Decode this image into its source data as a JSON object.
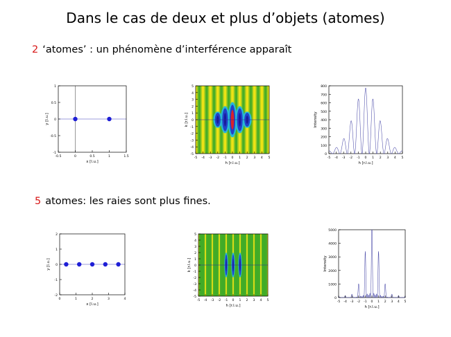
{
  "slide": {
    "title": "Dans le cas de deux et plus d’objets (atomes)",
    "row1_number": "2",
    "row1_text": "‘atomes’ : un phénomène d’interférence apparaît",
    "row2_number": "5",
    "row2_text": "atomes: les raies sont plus fines."
  },
  "colors": {
    "number": "#d81818",
    "atom": "#1f1fd6",
    "curve": "#4a4aa8",
    "map_base": "#f2e62a"
  },
  "chart_data": [
    {
      "type": "scatter",
      "panel": "positions-2",
      "x": [
        0,
        1
      ],
      "y": [
        0,
        0
      ],
      "xlabel": "x [l.u.]",
      "ylabel": "y [l.u.]",
      "xlim": [
        -0.5,
        1.5
      ],
      "ylim": [
        -1,
        1
      ],
      "xticks": [
        "-0.5",
        "0",
        "0.5",
        "1",
        "1.5"
      ],
      "yticks": [
        "1",
        "0.5",
        "0",
        "-0.5",
        "-1"
      ]
    },
    {
      "type": "heatmap",
      "panel": "map-2",
      "n_atoms": 2,
      "xlabel": "h [r.l.u.]",
      "ylabel": "k [r.l.u.]",
      "xlim": [
        -5,
        5
      ],
      "ylim": [
        -5,
        5
      ],
      "xticks": [
        "-5",
        "-4",
        "-3",
        "-2",
        "-1",
        "0",
        "1",
        "2",
        "3",
        "4",
        "5"
      ],
      "yticks": [
        "5",
        "4",
        "3",
        "2",
        "1",
        "0",
        "-1",
        "-2",
        "-3",
        "-4",
        "-5"
      ]
    },
    {
      "type": "line",
      "panel": "profile-2",
      "n_atoms": 2,
      "xlabel": "h [r.l.u.]",
      "ylabel": "Intensity",
      "xlim": [
        -5,
        5
      ],
      "ylim": [
        0,
        800
      ],
      "xticks": [
        "-5",
        "-4",
        "-3",
        "-2",
        "-1",
        "0",
        "1",
        "2",
        "3",
        "4",
        "5"
      ],
      "yticks": [
        "800",
        "700",
        "600",
        "500",
        "400",
        "300",
        "200",
        "100",
        "0"
      ]
    },
    {
      "type": "scatter",
      "panel": "positions-5",
      "x": [
        0,
        1,
        2,
        3,
        4
      ],
      "y": [
        0,
        0,
        0,
        0,
        0
      ],
      "xlabel": "x [l.u.]",
      "ylabel": "y [l.u.]",
      "xlim": [
        -0.5,
        4.5
      ],
      "ylim": [
        -2.5,
        2.5
      ],
      "xticks": [
        "0",
        "1",
        "2",
        "3",
        "4"
      ],
      "yticks": [
        "2",
        "1",
        "0",
        "-1",
        "-2"
      ]
    },
    {
      "type": "heatmap",
      "panel": "map-5",
      "n_atoms": 5,
      "xlabel": "h [r.l.u.]",
      "ylabel": "k [r.l.u.]",
      "xlim": [
        -5,
        5
      ],
      "ylim": [
        -5,
        5
      ],
      "xticks": [
        "-5",
        "-4",
        "-3",
        "-2",
        "-1",
        "0",
        "1",
        "2",
        "3",
        "4",
        "5"
      ],
      "yticks": [
        "5",
        "4",
        "3",
        "2",
        "1",
        "0",
        "-1",
        "-2",
        "-3",
        "-4",
        "-5"
      ]
    },
    {
      "type": "line",
      "panel": "profile-5",
      "n_atoms": 5,
      "xlabel": "h [r.l.u.]",
      "ylabel": "Intensity",
      "xlim": [
        -5,
        5
      ],
      "ylim": [
        0,
        5000
      ],
      "xticks": [
        "-5",
        "-4",
        "-3",
        "-2",
        "-1",
        "0",
        "1",
        "2",
        "3",
        "4",
        "5"
      ],
      "yticks": [
        "5000",
        "4000",
        "3000",
        "2000",
        "1000",
        "0"
      ]
    }
  ]
}
